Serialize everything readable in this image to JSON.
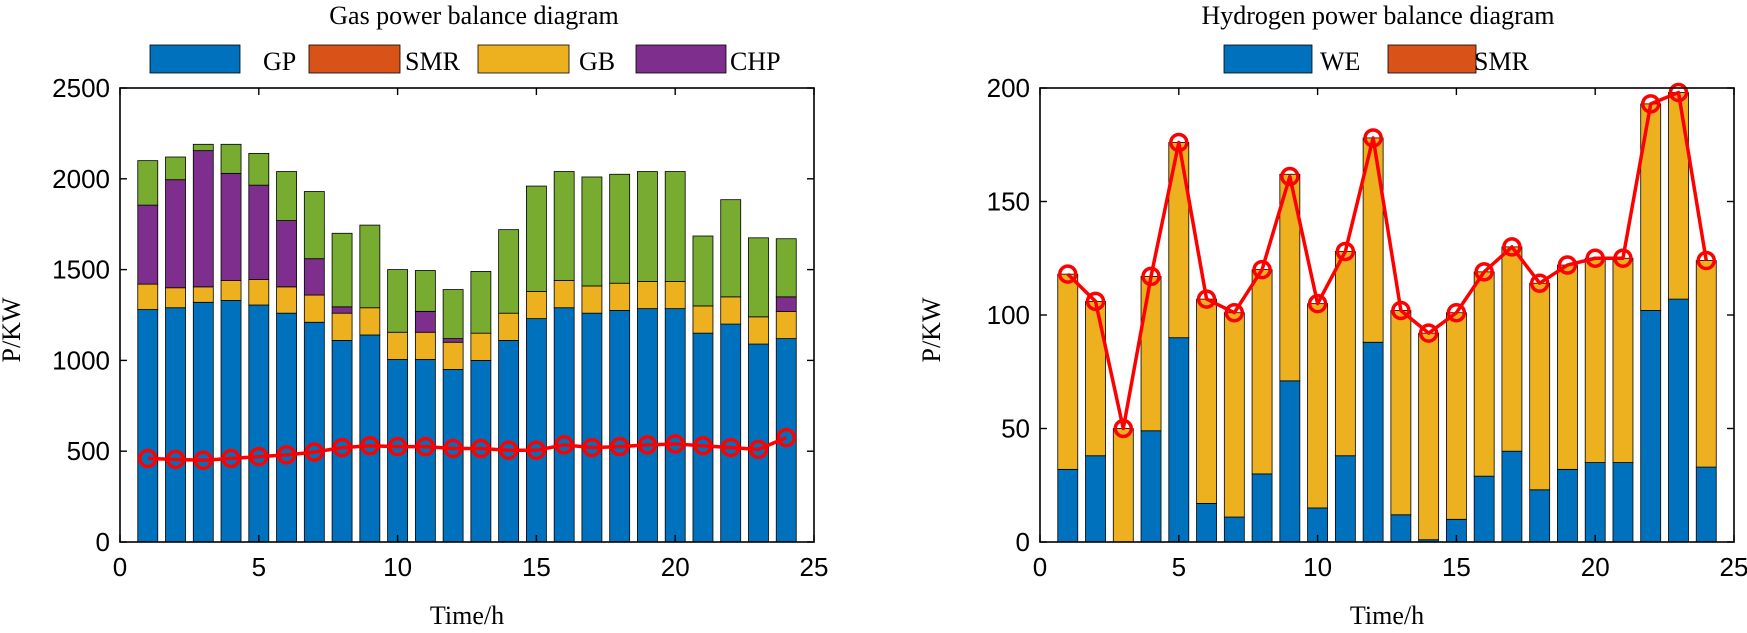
{
  "chart_data": [
    {
      "type": "bar",
      "stacked": true,
      "title": "Gas power balance diagram",
      "xlabel": "Time/h",
      "ylabel": "P/KW",
      "xlim": [
        0,
        25
      ],
      "ylim": [
        0,
        2500
      ],
      "xticks": [
        0,
        5,
        10,
        15,
        20,
        25
      ],
      "yticks": [
        0,
        500,
        1000,
        1500,
        2000,
        2500
      ],
      "x": [
        1,
        2,
        3,
        4,
        5,
        6,
        7,
        8,
        9,
        10,
        11,
        12,
        13,
        14,
        15,
        16,
        17,
        18,
        19,
        20,
        21,
        22,
        23,
        24
      ],
      "legend": [
        {
          "name": "GP",
          "color": "#0072BD"
        },
        {
          "name": "SMR",
          "color": "#D95319"
        },
        {
          "name": "GB",
          "color": "#EDB120"
        },
        {
          "name": "CHP",
          "color": "#7E2F8E"
        }
      ],
      "series": [
        {
          "name": "GP",
          "color": "#0072BD",
          "values": [
            1280,
            1290,
            1320,
            1330,
            1305,
            1260,
            1210,
            1110,
            1140,
            1005,
            1005,
            950,
            1000,
            1110,
            1230,
            1290,
            1260,
            1275,
            1285,
            1285,
            1150,
            1200,
            1090,
            1120
          ]
        },
        {
          "name": "GB",
          "color": "#EDB120",
          "values": [
            140,
            110,
            85,
            110,
            140,
            145,
            150,
            150,
            150,
            150,
            150,
            150,
            150,
            150,
            150,
            150,
            150,
            150,
            150,
            150,
            150,
            150,
            150,
            150
          ]
        },
        {
          "name": "CHP",
          "color": "#7E2F8E",
          "values": [
            435,
            595,
            750,
            590,
            520,
            365,
            200,
            35,
            0,
            0,
            115,
            20,
            0,
            0,
            0,
            0,
            0,
            0,
            0,
            0,
            0,
            0,
            0,
            80
          ]
        },
        {
          "name": "",
          "color": "#77AC30",
          "values": [
            245,
            125,
            35,
            160,
            175,
            270,
            370,
            405,
            455,
            345,
            225,
            270,
            340,
            460,
            580,
            600,
            600,
            600,
            605,
            605,
            385,
            535,
            435,
            320
          ]
        }
      ],
      "line": {
        "color": "#FF0000",
        "values": [
          460,
          455,
          450,
          460,
          470,
          480,
          495,
          520,
          530,
          525,
          525,
          515,
          515,
          505,
          505,
          535,
          520,
          525,
          535,
          540,
          530,
          520,
          510,
          575
        ]
      }
    },
    {
      "type": "bar",
      "stacked": true,
      "title": "Hydrogen power balance diagram",
      "xlabel": "Time/h",
      "ylabel": "P/KW",
      "xlim": [
        0,
        25
      ],
      "ylim": [
        0,
        200
      ],
      "xticks": [
        0,
        5,
        10,
        15,
        20,
        25
      ],
      "yticks": [
        0,
        50,
        100,
        150,
        200
      ],
      "x": [
        1,
        2,
        3,
        4,
        5,
        6,
        7,
        8,
        9,
        10,
        11,
        12,
        13,
        14,
        15,
        16,
        17,
        18,
        19,
        20,
        21,
        22,
        23,
        24
      ],
      "legend": [
        {
          "name": "WE",
          "color": "#0072BD"
        },
        {
          "name": "SMR",
          "color": "#D95319"
        }
      ],
      "series": [
        {
          "name": "WE",
          "color": "#0072BD",
          "values": [
            32,
            38,
            0,
            49,
            90,
            17,
            11,
            30,
            71,
            15,
            38,
            88,
            12,
            1,
            10,
            29,
            40,
            23,
            32,
            35,
            35,
            102,
            107,
            33
          ]
        },
        {
          "name": "",
          "color": "#EDB120",
          "values": [
            86,
            68,
            50,
            68,
            86,
            90,
            90,
            90,
            91,
            90,
            90,
            90,
            90,
            91,
            91,
            90,
            90,
            91,
            90,
            90,
            90,
            91,
            91,
            91
          ]
        }
      ],
      "line": {
        "color": "#FF0000",
        "values": [
          118,
          106,
          50,
          117,
          176,
          107,
          101,
          120,
          161,
          105,
          128,
          178,
          102,
          92,
          101,
          119,
          130,
          114,
          122,
          125,
          125,
          193,
          198,
          124
        ]
      }
    }
  ]
}
